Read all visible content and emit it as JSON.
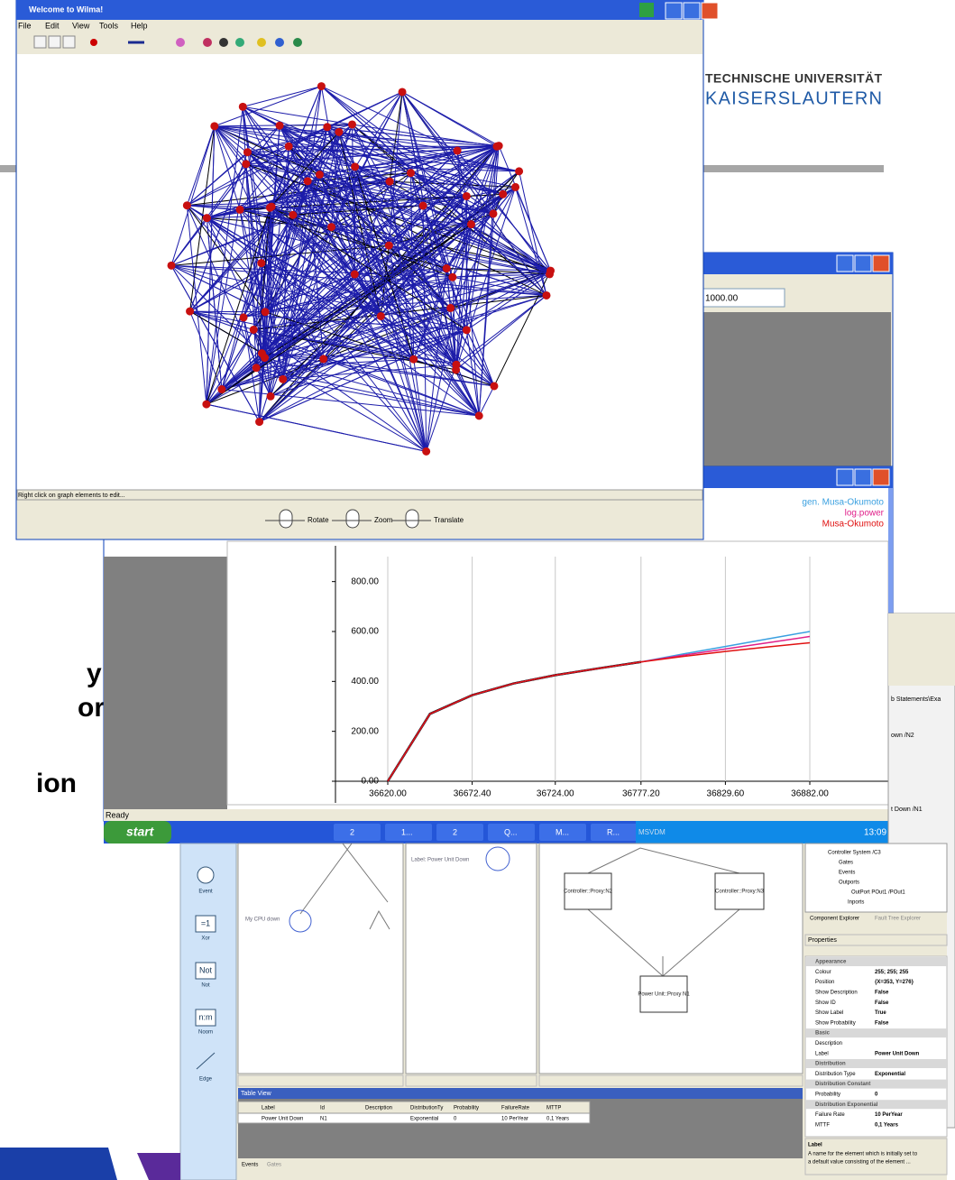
{
  "wilma": {
    "title": "Welcome to Wilma!",
    "menu": [
      "File",
      "Edit",
      "View",
      "Tools",
      "Help"
    ],
    "status": "Right click on graph elements to edit...",
    "controls": [
      "Rotate",
      "Zoom",
      "Translate"
    ]
  },
  "logo": {
    "line1": "TECHNISCHE UNIVERSITÄT",
    "line2": "KAISERSLAUTERN"
  },
  "input_window": {
    "field": "1000.00"
  },
  "chart_data": {
    "type": "line",
    "x": [
      36620,
      36646.2,
      36672.4,
      36698.2,
      36724,
      36750.6,
      36777.2,
      36803.4,
      36829.6,
      36855.8,
      36882
    ],
    "series": [
      {
        "color": "#000000",
        "values": [
          0,
          270,
          345,
          392,
          425,
          452,
          478,
          null,
          null,
          null,
          null
        ]
      },
      {
        "name": "gen. Musa-Okumoto",
        "color": "#3aa0e0",
        "values": [
          0,
          270,
          345,
          392,
          425,
          452,
          478,
          510,
          540,
          570,
          600
        ]
      },
      {
        "name": "log.power",
        "color": "#e0208a",
        "values": [
          0,
          270,
          345,
          392,
          425,
          452,
          478,
          505,
          530,
          555,
          580
        ]
      },
      {
        "name": "Musa-Okumoto",
        "color": "#e01010",
        "values": [
          0,
          270,
          345,
          392,
          425,
          452,
          478,
          500,
          520,
          538,
          555
        ]
      }
    ],
    "xlim": [
      36620,
      36882
    ],
    "ylim": [
      0,
      900
    ],
    "xticks": [
      {
        "value": 36620,
        "label": "36620.00"
      },
      {
        "value": 36672.4,
        "label": "36672.40"
      },
      {
        "value": 36724,
        "label": "36724.00"
      },
      {
        "value": 36777.2,
        "label": "36777.20"
      },
      {
        "value": 36829.6,
        "label": "36829.60"
      },
      {
        "value": 36882,
        "label": "36882.00"
      }
    ],
    "yticks": [
      {
        "value": 0,
        "label": "0.00"
      },
      {
        "value": 200,
        "label": "200.00"
      },
      {
        "value": 400,
        "label": "400.00"
      },
      {
        "value": 600,
        "label": "600.00"
      },
      {
        "value": 800,
        "label": "800.00"
      }
    ],
    "xgrid": true,
    "legend": "upper right"
  },
  "slide_text": [
    "y",
    "or",
    "ion"
  ],
  "status": "Ready",
  "taskbar": {
    "start": "start",
    "items": [
      "2",
      "1...",
      "2",
      "Q...",
      "M...",
      "R..."
    ],
    "tray": "MSVDM",
    "clock": "13:09"
  },
  "back_window": [
    "b Statements\\Exa",
    "own /N2",
    "t Down /N1"
  ],
  "fault_tree": {
    "palette": [
      {
        "label": "Event"
      },
      {
        "symbol": "=1",
        "label": "Xor"
      },
      {
        "symbol": "Not",
        "label": "Not"
      },
      {
        "symbol": "n:m",
        "label": "Noom"
      },
      {
        "label": "Edge"
      }
    ],
    "canvas": [
      "My CPU down",
      "Label: Power Unit Down",
      "Controller::Proxy:N2",
      "Controller::Proxy:N3",
      "Power Unit::Proxy N1"
    ],
    "table": {
      "title": "Table View",
      "header": [
        "Label",
        "Id",
        "Description",
        "DistributionTy",
        "Probability",
        "FailureRate",
        "MTTP"
      ],
      "row": {
        "label": "Power Unit Down",
        "id": "N1",
        "distribution": "Exponential",
        "probability": "0",
        "failure_rate": "10 PerYear",
        "mttp": "0,1 Years"
      }
    },
    "tabs": [
      "Events",
      "Gates"
    ],
    "tree": [
      "Controller System /C3",
      "Gates",
      "Events",
      "Outports",
      "OutPort POut1 /POut1",
      "Inports"
    ],
    "explorer_tabs": [
      "Component Explorer",
      "Fault Tree Explorer"
    ],
    "properties": {
      "title": "Properties",
      "rows": [
        {
          "section": "Appearance"
        },
        {
          "name": "Colour",
          "value": "255; 255; 255"
        },
        {
          "name": "Position",
          "value": "{X=353, Y=276}"
        },
        {
          "name": "Show Description",
          "value": "False"
        },
        {
          "name": "Show ID",
          "value": "False"
        },
        {
          "name": "Show Label",
          "value": "True"
        },
        {
          "name": "Show Probability",
          "value": "False"
        },
        {
          "section": "Basic"
        },
        {
          "name": "Description"
        },
        {
          "name": "Label",
          "value": "Power Unit Down"
        },
        {
          "section": "Distribution"
        },
        {
          "name": "Distribution Type",
          "value": "Exponential"
        },
        {
          "section": "Distribution Constant"
        },
        {
          "name": "Probability",
          "value": "0"
        },
        {
          "section": "Distribution Exponential"
        },
        {
          "name": "Failure Rate",
          "value": "10 PerYear"
        },
        {
          "name": "MTTF",
          "value": "0,1 Years"
        }
      ]
    },
    "help": {
      "title": "Label",
      "text": "A name for the element which is initially set to",
      "text2": "a default value consisting of the element ..."
    }
  }
}
